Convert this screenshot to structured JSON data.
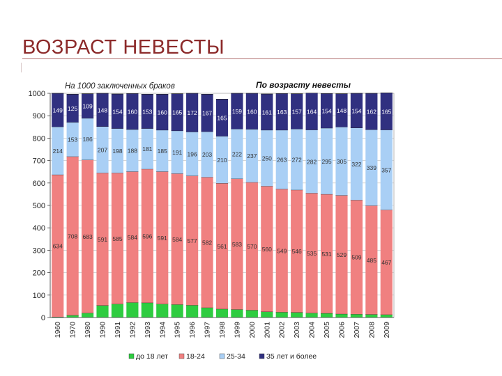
{
  "slide": {
    "title": "ВОЗРАСТ НЕВЕСТЫ"
  },
  "colors": {
    "s0": "#2ecc40",
    "s1": "#f08080",
    "s2": "#a9cff5",
    "s3": "#303080",
    "title": "#8c2a2a"
  },
  "chart_data": {
    "type": "bar",
    "stacked": true,
    "title": "По возрасту невесты",
    "subtitle": "На 1000 заключенных браков",
    "ylim": [
      0,
      1000
    ],
    "yticks": [
      0,
      100,
      200,
      300,
      400,
      500,
      600,
      700,
      800,
      900,
      1000
    ],
    "categories": [
      "1960",
      "1970",
      "1980",
      "1990",
      "1991",
      "1992",
      "1993",
      "1994",
      "1995",
      "1996",
      "1997",
      "1998",
      "1999",
      "2000",
      "2001",
      "2002",
      "2003",
      "2004",
      "2005",
      "2006",
      "2007",
      "2008",
      "2009"
    ],
    "series": [
      {
        "name": "до 18 лет",
        "values": [
          3,
          10,
          20,
          54,
          60,
          67,
          66,
          60,
          58,
          55,
          44,
          38,
          36,
          33,
          26,
          24,
          23,
          20,
          19,
          16,
          15,
          14,
          13
        ]
      },
      {
        "name": "18-24",
        "labels": [
          "634",
          "708",
          "683",
          "591",
          "585",
          "584",
          "596",
          "591",
          "584",
          "577",
          "582",
          "561",
          "583",
          "570",
          "560",
          "549",
          "546",
          "535",
          "531",
          "529",
          "509",
          "485",
          "467"
        ],
        "values": [
          634,
          708,
          683,
          591,
          585,
          584,
          596,
          591,
          584,
          577,
          582,
          561,
          583,
          570,
          560,
          549,
          546,
          535,
          531,
          529,
          509,
          485,
          467
        ]
      },
      {
        "name": "25-34",
        "labels": [
          "214",
          "153",
          "186",
          "207",
          "198",
          "188",
          "181",
          "185",
          "191",
          "196",
          "203",
          "210",
          "222",
          "237",
          "250",
          "263",
          "272",
          "282",
          "295",
          "305",
          "322",
          "339",
          "357"
        ],
        "values": [
          214,
          153,
          186,
          207,
          198,
          188,
          181,
          185,
          191,
          196,
          203,
          210,
          222,
          237,
          250,
          263,
          272,
          282,
          295,
          305,
          322,
          339,
          357
        ]
      },
      {
        "name": "35 лет и более",
        "labels": [
          "149",
          "125",
          "109",
          "148",
          "154",
          "160",
          "153",
          "160",
          "165",
          "172",
          "167",
          "165",
          "159",
          "160",
          "161",
          "163",
          "157",
          "164",
          "154",
          "148",
          "154",
          "162",
          "165"
        ],
        "values": [
          149,
          125,
          109,
          148,
          154,
          160,
          153,
          160,
          165,
          172,
          167,
          165,
          159,
          160,
          161,
          163,
          157,
          164,
          154,
          148,
          154,
          162,
          165
        ]
      }
    ],
    "legend": [
      "до 18 лет",
      "18-24",
      "25-34",
      "35 лет и более"
    ],
    "legend_position": "bottom",
    "grid": true
  }
}
